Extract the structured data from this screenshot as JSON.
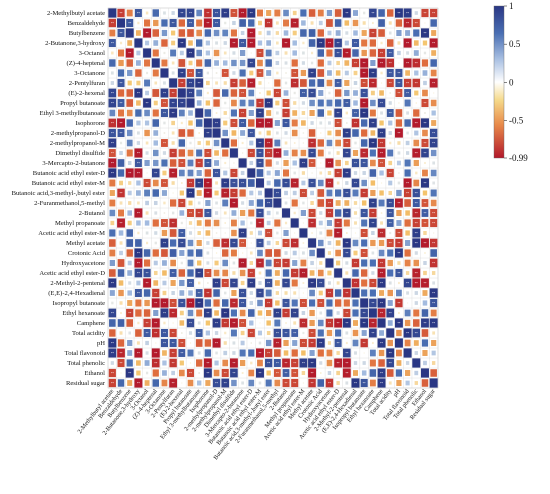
{
  "chart_data": {
    "type": "heatmap",
    "title": "",
    "labels": [
      "2-Methylbutyl acetate",
      "Benzaldehyde",
      "Butylbenzene",
      "2-Butanone,3-hydroxy",
      "3-Octanol",
      "(Z)-4-heptenal",
      "3-Octanone",
      "2-Pentylfuran",
      "(E)-2-hexenal",
      "Propyl butanoate",
      "Ethyl 3-methylbutanoate",
      "Isophorone",
      "2-methylpropanol-D",
      "2-methylpropanol-M",
      "Dimethyl disulfide",
      "3-Mercapto-2-butanone",
      "Butanoic acid ethyl ester-D",
      "Butanoic acid ethyl ester-M",
      "Butanoic acid,3-methyl-,butyl ester",
      "2-Furanmethanol,5-methyl",
      "2-Butanol",
      "Methyl propanoate",
      "Acetic acid ethyl ester-M",
      "Methyl acetate",
      "Crotonic Acid",
      "Hydroxyacetone",
      "Acetic acid ethyl ester-D",
      "2-Methyl-2-pentenal",
      "(E,E)-2,4-Hexadienal",
      "Isopropyl butanoate",
      "Ethyl hexanoate",
      "Camphene",
      "Total acidity",
      "pH",
      "Total flavonoid",
      "Total phenolic",
      "Ethanol",
      "Residual sugar"
    ],
    "colorbar": {
      "ticks": [
        "1",
        "0.5",
        "0",
        "-0.5",
        "-0.99"
      ],
      "tick_values": [
        1,
        0.5,
        0,
        -0.5,
        -0.99
      ],
      "range": [
        -0.99,
        1
      ],
      "colors": [
        "#b2182b",
        "#d6604d",
        "#f4a261",
        "#f7e08a",
        "#ffffff",
        "#b3c9e6",
        "#4575b4",
        "#2c3b8e"
      ]
    },
    "star_label": "**"
  }
}
